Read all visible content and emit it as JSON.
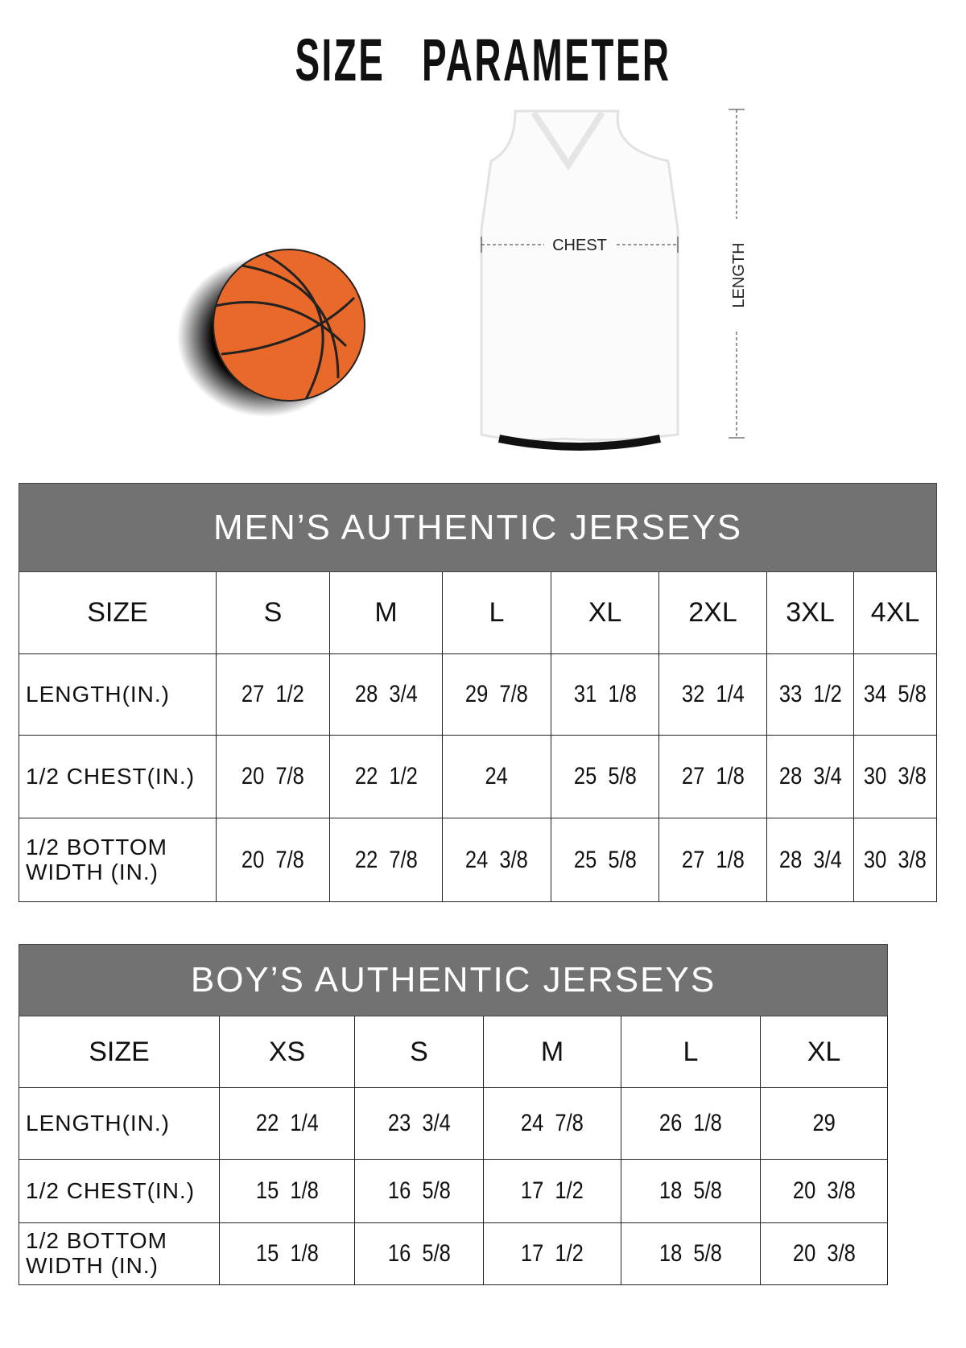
{
  "title": "SIZE   PARAMETER",
  "diagram": {
    "chest_label": "CHEST",
    "length_label": "LENGTH",
    "ball_color": "#e8692a"
  },
  "men": {
    "heading": "MEN’S AUTHENTIC JERSEYS",
    "size_label": "SIZE",
    "sizes": [
      "S",
      "M",
      "L",
      "XL",
      "2XL",
      "3XL",
      "4XL"
    ],
    "rows": [
      {
        "label": "LENGTH(IN.)",
        "values": [
          "27  1/2",
          "28  3/4",
          "29  7/8",
          "31  1/8",
          "32  1/4",
          "33  1/2",
          "34  5/8"
        ]
      },
      {
        "label": "1/2 CHEST(IN.)",
        "values": [
          "20  7/8",
          "22  1/2",
          "24",
          "25  5/8",
          "27  1/8",
          "28  3/4",
          "30  3/8"
        ]
      },
      {
        "label": "1/2 BOTTOM WIDTH  (IN.)",
        "values": [
          "20  7/8",
          "22  7/8",
          "24  3/8",
          "25  5/8",
          "27  1/8",
          "28  3/4",
          "30  3/8"
        ]
      }
    ]
  },
  "boy": {
    "heading": "BOY’S AUTHENTIC JERSEYS",
    "size_label": "SIZE",
    "sizes": [
      "XS",
      "S",
      "M",
      "L",
      "XL"
    ],
    "rows": [
      {
        "label": "LENGTH(IN.)",
        "values": [
          "22  1/4",
          "23  3/4",
          "24  7/8",
          "26  1/8",
          "29"
        ]
      },
      {
        "label": "1/2 CHEST(IN.)",
        "values": [
          "15  1/8",
          "16  5/8",
          "17  1/2",
          "18  5/8",
          "20  3/8"
        ]
      },
      {
        "label": "1/2 BOTTOM WIDTH  (IN.)",
        "values": [
          "15  1/8",
          "16  5/8",
          "17  1/2",
          "18  5/8",
          "20  3/8"
        ]
      }
    ]
  }
}
